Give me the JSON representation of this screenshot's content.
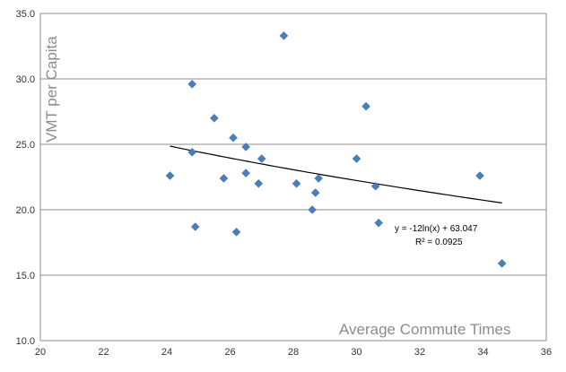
{
  "chart_data": {
    "type": "scatter",
    "title": "",
    "xlabel": "Average Commute Times",
    "ylabel": "VMT per Capita",
    "xlim": [
      20,
      36
    ],
    "ylim": [
      10.0,
      35.0
    ],
    "x_ticks": [
      "20",
      "22",
      "24",
      "26",
      "28",
      "30",
      "32",
      "34",
      "36"
    ],
    "y_ticks": [
      "10.0",
      "15.0",
      "20.0",
      "25.0",
      "30.0",
      "35.0"
    ],
    "grid": "horizontal",
    "legend": "none",
    "marker_color": "#4A7EBB",
    "trendline_color": "#000000",
    "grid_color": "#8c8c8c",
    "series": [
      {
        "points": [
          {
            "x": 24.1,
            "y": 22.6
          },
          {
            "x": 24.8,
            "y": 29.6
          },
          {
            "x": 24.8,
            "y": 24.4
          },
          {
            "x": 24.9,
            "y": 18.7
          },
          {
            "x": 25.5,
            "y": 27.0
          },
          {
            "x": 25.8,
            "y": 22.4
          },
          {
            "x": 26.1,
            "y": 25.5
          },
          {
            "x": 26.2,
            "y": 18.3
          },
          {
            "x": 26.5,
            "y": 24.8
          },
          {
            "x": 26.5,
            "y": 22.8
          },
          {
            "x": 26.9,
            "y": 22.0
          },
          {
            "x": 27.0,
            "y": 23.9
          },
          {
            "x": 27.7,
            "y": 33.3
          },
          {
            "x": 28.1,
            "y": 22.0
          },
          {
            "x": 28.6,
            "y": 20.0
          },
          {
            "x": 28.7,
            "y": 21.3
          },
          {
            "x": 28.8,
            "y": 22.4
          },
          {
            "x": 30.0,
            "y": 23.9
          },
          {
            "x": 30.3,
            "y": 27.9
          },
          {
            "x": 30.6,
            "y": 21.8
          },
          {
            "x": 30.7,
            "y": 19.0
          },
          {
            "x": 33.9,
            "y": 22.6
          },
          {
            "x": 34.6,
            "y": 15.9
          }
        ]
      }
    ],
    "trendline": {
      "type": "logarithmic",
      "a": -12,
      "b": 63.047,
      "x_start": 24.1,
      "x_end": 34.6
    },
    "annotations": {
      "equation": "y = -12ln(x) + 63.047",
      "r_squared": "R² = 0.0925"
    }
  }
}
